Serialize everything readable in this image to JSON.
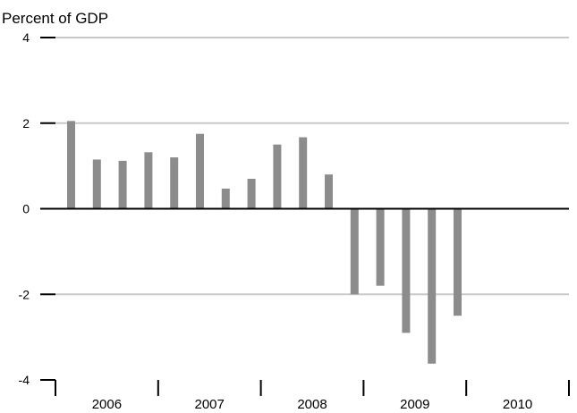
{
  "chart_data": {
    "type": "bar",
    "ylabel": "Percent of GDP",
    "ylim": [
      -4,
      4
    ],
    "y_ticks": [
      4,
      2,
      0,
      -2,
      -4
    ],
    "y_tick_labels": [
      "4",
      "2",
      "0",
      "-2",
      "-4"
    ],
    "years": [
      "2006",
      "2007",
      "2008",
      "2009",
      "2010"
    ],
    "quarters_per_year": 4,
    "values": [
      2.05,
      1.15,
      1.12,
      1.32,
      1.2,
      1.75,
      0.47,
      0.7,
      1.5,
      1.67,
      0.8,
      -2.0,
      -1.8,
      -2.9,
      -3.62,
      -2.5
    ],
    "grid": true,
    "bar_color": "#8c8c8c",
    "grid_color": "#c8c8c8",
    "zero_line_color": "#000000"
  }
}
